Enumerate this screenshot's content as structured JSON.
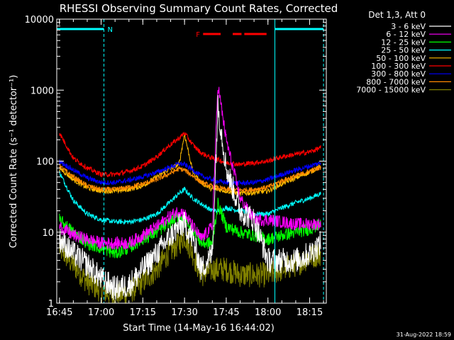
{
  "chart_data": {
    "type": "line",
    "title": "RHESSI Observing Summary Count Rates, Corrected",
    "xlabel": "Start Time (14-May-16 16:44:02)",
    "ylabel": "Corrected Count Rate (s⁻¹ detector⁻¹)",
    "y_scale": "log",
    "ylim": [
      1,
      10000
    ],
    "xlim": [
      "16:44:02",
      "18:21:00"
    ],
    "grid": false,
    "legend_position": "right",
    "legend_header": "Det 1,3, Att 0",
    "x_ticks": [
      "16:45",
      "17:00",
      "17:15",
      "17:30",
      "17:45",
      "18:00",
      "18:15"
    ],
    "y_ticks": [
      "1",
      "10",
      "100",
      "1000",
      "10000"
    ],
    "footer_date": "31-Aug-2022 18:59",
    "annotations": {
      "night_label": "N",
      "flare_label": "F",
      "night_intervals": [
        [
          "16:44:02",
          "17:01:00"
        ],
        [
          "18:02:30",
          "18:20:00"
        ]
      ],
      "flare_intervals": [
        [
          "17:36:40",
          "17:43:00"
        ],
        [
          "17:47:20",
          "17:50:30"
        ],
        [
          "17:51:30",
          "17:59:30"
        ]
      ],
      "night_color": "#00ffff",
      "flare_color": "#ff0000"
    },
    "x": [
      "16:45",
      "16:50",
      "16:55",
      "17:00",
      "17:05",
      "17:10",
      "17:15",
      "17:20",
      "17:24",
      "17:28",
      "17:30",
      "17:33",
      "17:36",
      "17:40",
      "17:42",
      "17:45",
      "17:50",
      "17:55",
      "18:00",
      "18:05",
      "18:10",
      "18:15",
      "18:19"
    ],
    "series": [
      {
        "name": "3 - 6 keV",
        "color": "#ffffff",
        "values": [
          8,
          5,
          3.5,
          2.2,
          1.6,
          1.8,
          3,
          5,
          8,
          12,
          13,
          8,
          3,
          5,
          600,
          80,
          20,
          15,
          4,
          4,
          4,
          5,
          7
        ]
      },
      {
        "name": "6 - 12 keV",
        "color": "#ff00ff",
        "values": [
          12,
          9,
          8,
          7,
          7,
          7,
          9,
          12,
          16,
          20,
          18,
          12,
          8,
          12,
          1200,
          200,
          30,
          15,
          15,
          14,
          13,
          13,
          13
        ]
      },
      {
        "name": "12 - 25 keV",
        "color": "#00ff00",
        "values": [
          15,
          10,
          7,
          6,
          5,
          6,
          8,
          10,
          13,
          17,
          16,
          11,
          7,
          7,
          25,
          12,
          10,
          9,
          8,
          9,
          10,
          11,
          13
        ]
      },
      {
        "name": "25 - 50 keV",
        "color": "#00ffff",
        "values": [
          70,
          28,
          18,
          15,
          14,
          14,
          15,
          18,
          25,
          35,
          40,
          30,
          25,
          20,
          20,
          22,
          20,
          18,
          18,
          22,
          26,
          30,
          35
        ]
      },
      {
        "name": "50 - 100 keV",
        "color": "#ffbb00",
        "values": [
          80,
          55,
          42,
          38,
          38,
          40,
          45,
          60,
          75,
          90,
          240,
          70,
          50,
          40,
          40,
          38,
          35,
          36,
          38,
          48,
          58,
          70,
          85
        ]
      },
      {
        "name": "100 - 300 keV",
        "color": "#ff0000",
        "values": [
          250,
          110,
          80,
          65,
          65,
          72,
          85,
          115,
          160,
          210,
          250,
          170,
          130,
          110,
          105,
          95,
          90,
          95,
          100,
          115,
          125,
          135,
          155
        ]
      },
      {
        "name": "300 - 800 keV",
        "color": "#0000ff",
        "values": [
          100,
          75,
          58,
          50,
          50,
          54,
          60,
          70,
          80,
          92,
          90,
          75,
          62,
          55,
          52,
          50,
          49,
          50,
          55,
          65,
          75,
          85,
          95
        ]
      },
      {
        "name": "800 - 7000 keV",
        "color": "#ff8800",
        "values": [
          85,
          60,
          45,
          40,
          40,
          43,
          48,
          55,
          65,
          78,
          75,
          62,
          50,
          44,
          42,
          40,
          39,
          40,
          43,
          53,
          62,
          72,
          82
        ]
      },
      {
        "name": "7000 - 15000 keV",
        "color": "#808000",
        "values": [
          6,
          3.5,
          2,
          1.5,
          1.3,
          1.4,
          2,
          3,
          5,
          7,
          9,
          5,
          2.5,
          3,
          3,
          3,
          2.5,
          2.5,
          2.5,
          3,
          3.5,
          4.5,
          5
        ]
      }
    ]
  }
}
